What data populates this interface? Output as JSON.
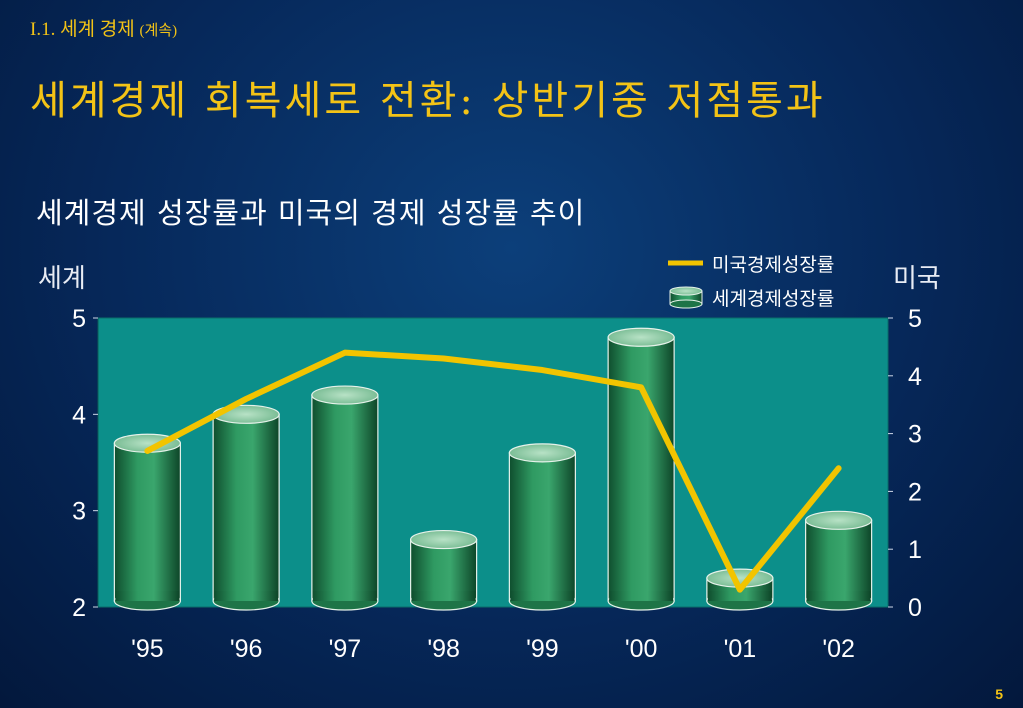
{
  "header": {
    "breadcrumb": "I.1. 세계 경제",
    "breadcrumb_suffix": "(계속)",
    "title": "세계경제 회복세로 전환: 상반기중 저점통과"
  },
  "page_number": "5",
  "chart_data": {
    "type": "bar",
    "title": "세계경제 성장률과 미국의 경제 성장률 추이",
    "categories": [
      "'95",
      "'96",
      "'97",
      "'98",
      "'99",
      "'00",
      "'01",
      "'02"
    ],
    "y_left_label": "세계",
    "y_right_label": "미국",
    "y_left": {
      "ylim": [
        2,
        5
      ],
      "ticks": [
        "2",
        "3",
        "4",
        "5"
      ]
    },
    "y_right": {
      "ylim": [
        0,
        5
      ],
      "ticks": [
        "0",
        "1",
        "2",
        "3",
        "4",
        "5"
      ]
    },
    "grid": false,
    "legend": "top-right",
    "series": [
      {
        "name": "세계경제성장률",
        "type": "bar",
        "axis": "left",
        "color": "#2e8b57",
        "values": [
          3.7,
          4.0,
          4.2,
          2.7,
          3.6,
          4.8,
          2.3,
          2.9
        ]
      },
      {
        "name": "미국경제성장률",
        "type": "line",
        "axis": "right",
        "color": "#f2c400",
        "values": [
          2.7,
          3.6,
          4.4,
          4.3,
          4.1,
          3.8,
          0.3,
          2.4
        ]
      }
    ],
    "plot_bg": "#0c8f8a"
  }
}
